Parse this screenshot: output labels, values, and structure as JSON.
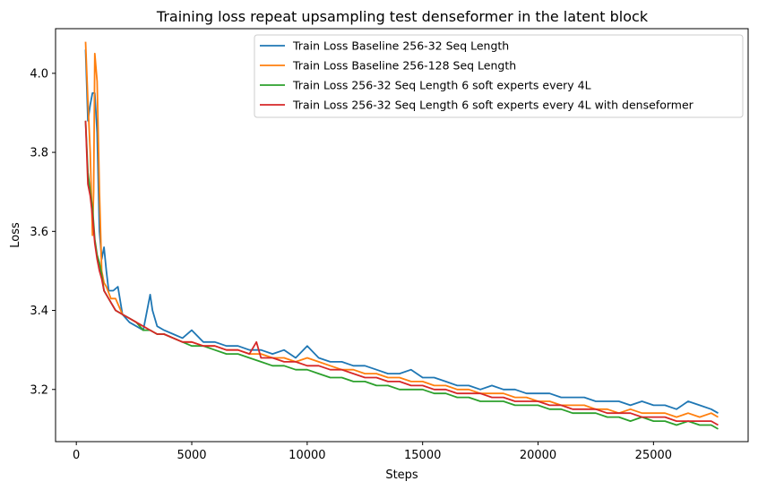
{
  "chart_data": {
    "type": "line",
    "title": "Training loss repeat upsampling test denseformer in the latent block",
    "xlabel": "Steps",
    "ylabel": "Loss",
    "xlim": [
      -900,
      29100
    ],
    "ylim": [
      3.068,
      4.113
    ],
    "xticks": [
      0,
      5000,
      10000,
      15000,
      20000,
      25000
    ],
    "yticks": [
      3.2,
      3.4,
      3.6,
      3.8,
      4.0
    ],
    "grid": false,
    "legend_position": "top-right",
    "series": [
      {
        "name": "Train Loss Baseline 256-32 Seq Length",
        "color": "#1f77b4",
        "x": [
          400,
          500,
          600,
          700,
          800,
          900,
          1000,
          1100,
          1200,
          1300,
          1400,
          1600,
          1800,
          2000,
          2300,
          2600,
          2900,
          3200,
          3300,
          3500,
          3800,
          4200,
          4600,
          5000,
          5500,
          6000,
          6500,
          7000,
          7500,
          8000,
          8500,
          9000,
          9500,
          10000,
          10500,
          11000,
          11500,
          12000,
          12500,
          13000,
          13500,
          14000,
          14500,
          15000,
          15500,
          16000,
          16500,
          17000,
          17500,
          18000,
          18500,
          19000,
          19500,
          20000,
          20500,
          21000,
          21500,
          22000,
          22500,
          23000,
          23500,
          24000,
          24500,
          25000,
          25500,
          26000,
          26500,
          27000,
          27500,
          27800
        ],
        "y": [
          4.06,
          3.88,
          3.92,
          3.95,
          3.95,
          3.85,
          3.6,
          3.53,
          3.56,
          3.5,
          3.45,
          3.45,
          3.46,
          3.39,
          3.37,
          3.36,
          3.35,
          3.44,
          3.4,
          3.36,
          3.35,
          3.34,
          3.33,
          3.35,
          3.32,
          3.32,
          3.31,
          3.31,
          3.3,
          3.3,
          3.29,
          3.3,
          3.28,
          3.31,
          3.28,
          3.27,
          3.27,
          3.26,
          3.26,
          3.25,
          3.24,
          3.24,
          3.25,
          3.23,
          3.23,
          3.22,
          3.21,
          3.21,
          3.2,
          3.21,
          3.2,
          3.2,
          3.19,
          3.19,
          3.19,
          3.18,
          3.18,
          3.18,
          3.17,
          3.17,
          3.17,
          3.16,
          3.17,
          3.16,
          3.16,
          3.15,
          3.17,
          3.16,
          3.15,
          3.14
        ]
      },
      {
        "name": "Train Loss Baseline 256-128 Seq Length",
        "color": "#ff7f0e",
        "x": [
          400,
          500,
          600,
          700,
          750,
          800,
          900,
          1000,
          1100,
          1200,
          1300,
          1500,
          1700,
          2000,
          2300,
          2600,
          2900,
          3200,
          3500,
          3800,
          4200,
          4600,
          5000,
          5500,
          6000,
          6500,
          7000,
          7500,
          8000,
          8500,
          9000,
          9500,
          10000,
          10500,
          11000,
          11500,
          12000,
          12500,
          13000,
          13500,
          14000,
          14500,
          15000,
          15500,
          16000,
          16500,
          17000,
          17500,
          18000,
          18500,
          19000,
          19500,
          20000,
          20500,
          21000,
          21500,
          22000,
          22500,
          23000,
          23500,
          24000,
          24500,
          25000,
          25500,
          26000,
          26500,
          27000,
          27500,
          27800
        ],
        "y": [
          4.08,
          3.93,
          3.8,
          3.59,
          3.7,
          4.05,
          3.98,
          3.7,
          3.5,
          3.47,
          3.46,
          3.43,
          3.43,
          3.39,
          3.38,
          3.37,
          3.35,
          3.35,
          3.34,
          3.34,
          3.33,
          3.32,
          3.32,
          3.31,
          3.31,
          3.3,
          3.3,
          3.29,
          3.29,
          3.28,
          3.28,
          3.27,
          3.28,
          3.27,
          3.26,
          3.25,
          3.25,
          3.24,
          3.24,
          3.23,
          3.23,
          3.22,
          3.22,
          3.21,
          3.21,
          3.2,
          3.2,
          3.19,
          3.19,
          3.19,
          3.18,
          3.18,
          3.17,
          3.17,
          3.16,
          3.16,
          3.16,
          3.15,
          3.15,
          3.14,
          3.15,
          3.14,
          3.14,
          3.14,
          3.13,
          3.14,
          3.13,
          3.14,
          3.13
        ]
      },
      {
        "name": "Train Loss 256-32 Seq Length 6 soft experts every 4L",
        "color": "#2ca02c",
        "x": [
          400,
          500,
          600,
          700,
          800,
          900,
          1000,
          1100,
          1200,
          1300,
          1500,
          1700,
          2000,
          2300,
          2600,
          2900,
          3200,
          3500,
          3800,
          4200,
          4600,
          5000,
          5500,
          6000,
          6500,
          7000,
          7500,
          8000,
          8500,
          9000,
          9500,
          10000,
          10500,
          11000,
          11500,
          12000,
          12500,
          13000,
          13500,
          14000,
          14500,
          15000,
          15500,
          16000,
          16500,
          17000,
          17500,
          18000,
          18500,
          19000,
          19500,
          20000,
          20500,
          21000,
          21500,
          22000,
          22500,
          23000,
          23500,
          24000,
          24500,
          25000,
          25500,
          26000,
          26500,
          27000,
          27500,
          27800
        ],
        "y": [
          3.88,
          3.75,
          3.7,
          3.66,
          3.58,
          3.54,
          3.52,
          3.49,
          3.45,
          3.44,
          3.42,
          3.4,
          3.39,
          3.38,
          3.37,
          3.35,
          3.35,
          3.34,
          3.34,
          3.33,
          3.32,
          3.31,
          3.31,
          3.3,
          3.29,
          3.29,
          3.28,
          3.27,
          3.26,
          3.26,
          3.25,
          3.25,
          3.24,
          3.23,
          3.23,
          3.22,
          3.22,
          3.21,
          3.21,
          3.2,
          3.2,
          3.2,
          3.19,
          3.19,
          3.18,
          3.18,
          3.17,
          3.17,
          3.17,
          3.16,
          3.16,
          3.16,
          3.15,
          3.15,
          3.14,
          3.14,
          3.14,
          3.13,
          3.13,
          3.12,
          3.13,
          3.12,
          3.12,
          3.11,
          3.12,
          3.11,
          3.11,
          3.1
        ]
      },
      {
        "name": "Train Loss 256-32 Seq Length 6 soft experts every 4L with denseformer",
        "color": "#d62728",
        "x": [
          400,
          500,
          600,
          700,
          800,
          900,
          1000,
          1100,
          1200,
          1300,
          1500,
          1700,
          2000,
          2300,
          2600,
          2900,
          3200,
          3500,
          3800,
          4200,
          4600,
          5000,
          5500,
          6000,
          6500,
          7000,
          7500,
          7800,
          8000,
          8500,
          9000,
          9500,
          10000,
          10500,
          11000,
          11500,
          12000,
          12500,
          13000,
          13500,
          14000,
          14500,
          15000,
          15500,
          16000,
          16500,
          17000,
          17500,
          18000,
          18500,
          19000,
          19500,
          20000,
          20500,
          21000,
          21500,
          22000,
          22500,
          23000,
          23500,
          24000,
          24500,
          25000,
          25500,
          26000,
          26500,
          27000,
          27500,
          27800
        ],
        "y": [
          3.88,
          3.72,
          3.69,
          3.64,
          3.57,
          3.53,
          3.5,
          3.48,
          3.45,
          3.44,
          3.42,
          3.4,
          3.39,
          3.38,
          3.37,
          3.36,
          3.35,
          3.34,
          3.34,
          3.33,
          3.32,
          3.32,
          3.31,
          3.31,
          3.3,
          3.3,
          3.29,
          3.32,
          3.28,
          3.28,
          3.27,
          3.27,
          3.26,
          3.26,
          3.25,
          3.25,
          3.24,
          3.23,
          3.23,
          3.22,
          3.22,
          3.21,
          3.21,
          3.2,
          3.2,
          3.19,
          3.19,
          3.19,
          3.18,
          3.18,
          3.17,
          3.17,
          3.17,
          3.16,
          3.16,
          3.15,
          3.15,
          3.15,
          3.14,
          3.14,
          3.14,
          3.13,
          3.13,
          3.13,
          3.12,
          3.12,
          3.12,
          3.12,
          3.11
        ]
      }
    ]
  }
}
